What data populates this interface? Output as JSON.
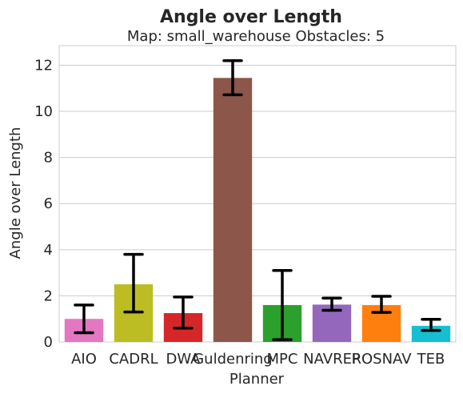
{
  "chart_data": {
    "type": "bar",
    "title": "Angle over Length",
    "subtitle": "Map: small_warehouse Obstacles: 5",
    "xlabel": "Planner",
    "ylabel": "Angle over Length",
    "ylim": [
      0,
      12.85
    ],
    "yticks": [
      "0",
      "2",
      "4",
      "6",
      "8",
      "10",
      "12"
    ],
    "grid": true,
    "categories": [
      "AIO",
      "CADRL",
      "DWA",
      "Guldenring",
      "MPC",
      "NAVREP",
      "ROSNAV",
      "TEB"
    ],
    "series": [
      {
        "values": [
          1.0,
          2.5,
          1.25,
          11.45,
          1.6,
          1.62,
          1.6,
          0.7
        ],
        "error_low": [
          0.4,
          1.3,
          0.6,
          10.72,
          0.1,
          1.37,
          1.28,
          0.5
        ],
        "error_high": [
          1.6,
          3.8,
          1.95,
          12.2,
          3.1,
          1.9,
          1.98,
          0.98
        ],
        "colors": [
          "#e377c2",
          "#bcbd22",
          "#d62728",
          "#8c564b",
          "#2ca02c",
          "#9467bd",
          "#ff7f0e",
          "#17becf"
        ]
      }
    ]
  }
}
